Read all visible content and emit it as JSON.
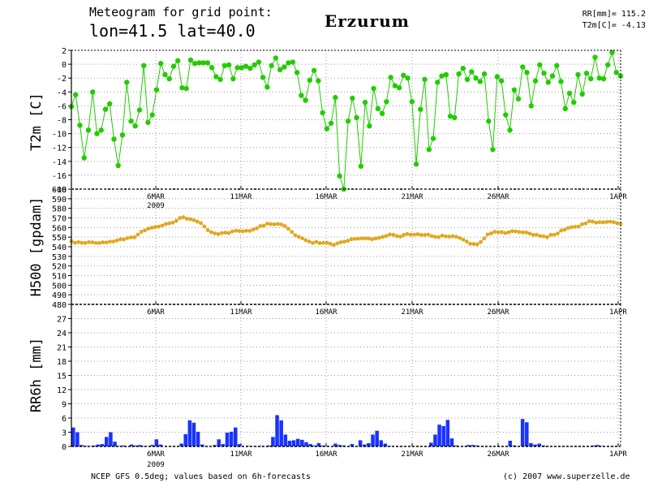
{
  "header": {
    "subtitle": "Meteogram for grid point:",
    "location": "lon=41.5 lat=40.0",
    "city": "Erzurum",
    "stat_rr": "RR[mm]= 115.2",
    "stat_t2m": "T2m[C]= -4.13"
  },
  "footer": {
    "source": "NCEP GFS 0.5deg; values based on 6h-forecasts",
    "copyright": "(c) 2007 www.superzelle.de"
  },
  "colors": {
    "t2m": "#22cc00",
    "h500": "#e0a820",
    "rr6h": "#1a33ff",
    "grid": "#999999"
  },
  "chart_data": [
    {
      "type": "line",
      "ylabel": "T2m [C]",
      "ylim": [
        -18,
        2
      ],
      "yticks": [
        2,
        0,
        -2,
        -4,
        -6,
        -8,
        -10,
        -12,
        -14,
        -16,
        -18
      ],
      "xticks": [
        "6MAR",
        "11MAR",
        "16MAR",
        "21MAR",
        "26MAR",
        "1APR"
      ],
      "xtick_sub": "2009",
      "grid": true,
      "series": [
        {
          "values": [
            -6.1,
            -4.4,
            -8.8,
            -13.5,
            -9.5,
            -4.0,
            -10.0,
            -9.5,
            -6.5,
            -5.7,
            -10.8,
            -14.6,
            -10.2,
            -2.6,
            -8.2,
            -8.9,
            -6.6,
            -0.2,
            -8.4,
            -7.3,
            -3.7,
            0.1,
            -1.5,
            -2.1,
            -0.3,
            0.5,
            -3.4,
            -3.5,
            0.6,
            0.1,
            0.2,
            0.2,
            0.2,
            -0.5,
            -1.8,
            -2.2,
            -0.2,
            -0.1,
            -2.1,
            -0.5,
            -0.5,
            -0.3,
            -0.6,
            -0.1,
            0.3,
            -1.9,
            -3.3,
            -0.2,
            0.9,
            -0.8,
            -0.4,
            0.2,
            0.3,
            -1.2,
            -4.5,
            -5.2,
            -2.3,
            -0.9,
            -2.4,
            -7.0,
            -9.3,
            -8.5,
            -4.8,
            -16.1,
            -18.0,
            -8.2,
            -4.9,
            -7.7,
            -14.7,
            -5.5,
            -8.9,
            -3.5,
            -6.4,
            -7.1,
            -5.4,
            -1.9,
            -3.1,
            -3.4,
            -1.6,
            -2.0,
            -5.4,
            -14.4,
            -6.5,
            -2.2,
            -12.3,
            -10.7,
            -2.6,
            -1.7,
            -1.5,
            -7.5,
            -7.7,
            -1.4,
            -0.6,
            -2.2,
            -1.1,
            -2.0,
            -2.5,
            -1.4,
            -8.2,
            -12.3,
            -1.8,
            -2.4,
            -7.3,
            -9.5,
            -3.7,
            -5.0,
            -0.4,
            -1.2,
            -6.0,
            -2.4,
            -0.1,
            -1.3,
            -2.6,
            -1.7,
            -0.2,
            -2.5,
            -6.4,
            -4.2,
            -5.5,
            -1.5,
            -4.3,
            -1.3,
            -2.1,
            1.0,
            -2.0,
            -2.1,
            -0.1,
            1.7,
            -1.2,
            -1.7
          ]
        }
      ]
    },
    {
      "type": "line",
      "ylabel": "H500 [gpdam]",
      "ylim": [
        480,
        600
      ],
      "yticks": [
        600,
        590,
        580,
        570,
        560,
        550,
        540,
        530,
        520,
        510,
        500,
        490,
        480
      ],
      "xticks": [
        "6MAR",
        "11MAR",
        "16MAR",
        "21MAR",
        "26MAR",
        "1APR"
      ],
      "grid": true,
      "series": [
        {
          "values": [
            545.8,
            544.1,
            544.8,
            544.1,
            544.0,
            544.7,
            544.6,
            544.0,
            543.9,
            544.6,
            544.4,
            545.3,
            545.4,
            546.5,
            547.7,
            547.6,
            549.0,
            549.8,
            549.8,
            552.7,
            555.6,
            557.1,
            558.8,
            559.8,
            560.5,
            561.0,
            562.1,
            563.7,
            564.4,
            565.1,
            567.0,
            569.9,
            570.7,
            569.1,
            568.7,
            567.7,
            566.2,
            564.6,
            561.1,
            557.3,
            555.2,
            553.9,
            553.2,
            554.2,
            554.7,
            554.2,
            555.9,
            556.7,
            556.3,
            556.1,
            556.6,
            556.5,
            557.9,
            559.2,
            561.5,
            561.9,
            564.1,
            563.5,
            563.3,
            563.7,
            563.2,
            561.6,
            558.8,
            555.4,
            552.0,
            550.3,
            548.8,
            546.7,
            545.4,
            543.9,
            545.1,
            543.7,
            544.1,
            544.2,
            543.1,
            541.9,
            543.5,
            544.7,
            545.3,
            546.1,
            547.8,
            548.2,
            548.5,
            548.6,
            548.6,
            548.6,
            547.8,
            548.6,
            549.3,
            550.2,
            551.2,
            552.8,
            552.4,
            551.2,
            550.5,
            552.3,
            553.3,
            552.5,
            552.6,
            553.1,
            552.3,
            552.3,
            552.6,
            551.1,
            550.3,
            550.0,
            551.6,
            550.8,
            550.5,
            551.0,
            550.4,
            549.1,
            547.5,
            545.5,
            543.1,
            542.9,
            542.6,
            544.9,
            548.6,
            552.9,
            553.9,
            555.6,
            555.1,
            555.2,
            554.3,
            555.0,
            556.2,
            556.0,
            555.5,
            555.0,
            554.9,
            553.8,
            552.3,
            552.5,
            551.2,
            550.9,
            549.9,
            552.4,
            552.4,
            553.8,
            556.9,
            557.7,
            559.5,
            560.4,
            560.8,
            561.0,
            563.5,
            564.2,
            566.6,
            566.2,
            565.1,
            565.6,
            565.4,
            565.8,
            566.1,
            565.6,
            564.5,
            563.9
          ]
        }
      ]
    },
    {
      "type": "bar",
      "ylabel": "RR6h [mm]",
      "ylim": [
        0,
        30
      ],
      "yticks": [
        27,
        24,
        21,
        18,
        15,
        12,
        9,
        6,
        3,
        0
      ],
      "xticks": [
        "6MAR",
        "11MAR",
        "16MAR",
        "21MAR",
        "26MAR",
        "1APR"
      ],
      "xtick_sub": "2009",
      "grid": true,
      "series": [
        {
          "values": [
            4.0,
            3.0,
            0.3,
            0.1,
            0.0,
            0.2,
            0.4,
            0.5,
            2.0,
            3.0,
            1.0,
            0.1,
            0.2,
            0.0,
            0.4,
            0.2,
            0.3,
            0.1,
            0.0,
            0.3,
            1.5,
            0.4,
            0.0,
            0.0,
            0.0,
            0.0,
            0.6,
            2.6,
            5.5,
            5.0,
            3.1,
            0.4,
            0.0,
            0.0,
            0.3,
            1.5,
            0.5,
            2.9,
            3.1,
            4.0,
            0.5,
            0.0,
            0.1,
            0.0,
            0.0,
            0.1,
            0.0,
            0.2,
            2.0,
            6.6,
            5.5,
            2.5,
            1.2,
            1.3,
            1.6,
            1.4,
            0.9,
            0.5,
            0.2,
            0.7,
            0.2,
            0.1,
            0.0,
            0.6,
            0.3,
            0.2,
            0.0,
            0.5,
            0.0,
            1.3,
            0.4,
            0.7,
            2.5,
            3.3,
            1.3,
            0.6,
            0.1,
            0.0,
            0.0,
            0.0,
            0.0,
            0.0,
            0.0,
            0.0,
            0.0,
            0.0,
            0.8,
            2.5,
            4.6,
            4.3,
            5.6,
            1.7,
            0.2,
            0.0,
            0.0,
            0.3,
            0.3,
            0.2,
            0.0,
            0.0,
            0.0,
            0.0,
            0.0,
            0.0,
            0.0,
            1.2,
            0.2,
            0.0,
            5.8,
            5.1,
            0.7,
            0.4,
            0.6,
            0.2,
            0.0,
            0.0,
            0.0,
            0.0,
            0.0,
            0.0,
            0.0,
            0.0,
            0.0,
            0.0,
            0.0,
            0.2,
            0.3,
            0.1,
            0.0,
            0.0,
            0.0,
            0.0
          ]
        }
      ]
    }
  ]
}
